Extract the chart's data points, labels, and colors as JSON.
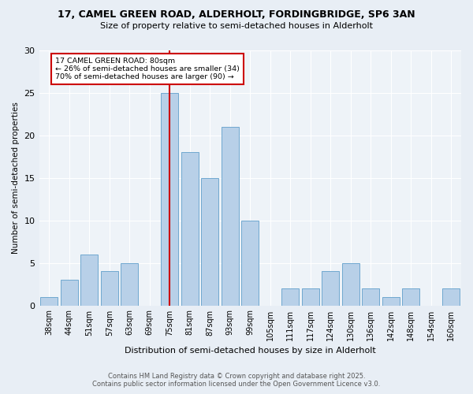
{
  "title1": "17, CAMEL GREEN ROAD, ALDERHOLT, FORDINGBRIDGE, SP6 3AN",
  "title2": "Size of property relative to semi-detached houses in Alderholt",
  "xlabel": "Distribution of semi-detached houses by size in Alderholt",
  "ylabel": "Number of semi-detached properties",
  "bar_labels": [
    "38sqm",
    "44sqm",
    "51sqm",
    "57sqm",
    "63sqm",
    "69sqm",
    "75sqm",
    "81sqm",
    "87sqm",
    "93sqm",
    "99sqm",
    "105sqm",
    "111sqm",
    "117sqm",
    "124sqm",
    "130sqm",
    "136sqm",
    "142sqm",
    "148sqm",
    "154sqm",
    "160sqm"
  ],
  "bar_values": [
    1,
    3,
    6,
    4,
    5,
    0,
    25,
    18,
    15,
    21,
    10,
    0,
    2,
    2,
    4,
    5,
    2,
    1,
    2,
    0,
    2
  ],
  "bar_color": "#b8d0e8",
  "bar_edge_color": "#6fa8d0",
  "vline_x": 6.5,
  "vline_color": "#cc0000",
  "annotation_title": "17 CAMEL GREEN ROAD: 80sqm",
  "annotation_line1": "← 26% of semi-detached houses are smaller (34)",
  "annotation_line2": "70% of semi-detached houses are larger (90) →",
  "annotation_box_color": "#cc0000",
  "ylim": [
    0,
    30
  ],
  "yticks": [
    0,
    5,
    10,
    15,
    20,
    25,
    30
  ],
  "footer1": "Contains HM Land Registry data © Crown copyright and database right 2025.",
  "footer2": "Contains public sector information licensed under the Open Government Licence v3.0.",
  "bg_color": "#e8eef5",
  "plot_bg_color": "#eef3f8"
}
